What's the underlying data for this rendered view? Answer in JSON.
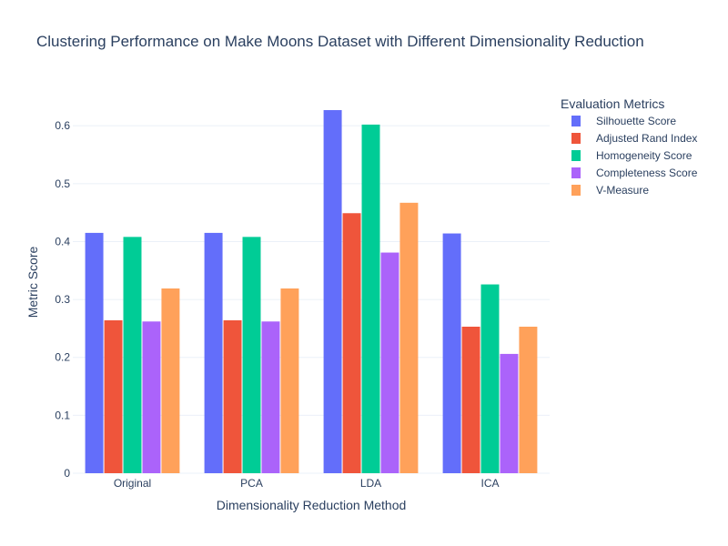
{
  "chart_data": {
    "type": "bar",
    "title": "Clustering Performance on Make Moons Dataset with Different Dimensionality Reduction",
    "xlabel": "Dimensionality Reduction Method",
    "ylabel": "Metric Score",
    "categories": [
      "Original",
      "PCA",
      "LDA",
      "ICA"
    ],
    "ylim": [
      0,
      0.66
    ],
    "yticks": [
      0,
      0.1,
      0.2,
      0.3,
      0.4,
      0.5,
      0.6
    ],
    "ytick_labels": [
      "0",
      "0.1",
      "0.2",
      "0.3",
      "0.4",
      "0.5",
      "0.6"
    ],
    "grid": true,
    "legend": {
      "title": "Evaluation Metrics",
      "placement": "right"
    },
    "series": [
      {
        "name": "Silhouette Score",
        "color": "#636efa",
        "values": [
          0.415,
          0.415,
          0.627,
          0.414
        ]
      },
      {
        "name": "Adjusted Rand Index",
        "color": "#ef553b",
        "values": [
          0.264,
          0.264,
          0.449,
          0.253
        ]
      },
      {
        "name": "Homogeneity Score",
        "color": "#00cc96",
        "values": [
          0.408,
          0.408,
          0.602,
          0.326
        ]
      },
      {
        "name": "Completeness Score",
        "color": "#ab63fa",
        "values": [
          0.262,
          0.262,
          0.381,
          0.206
        ]
      },
      {
        "name": "V-Measure",
        "color": "#ffa15a",
        "values": [
          0.319,
          0.319,
          0.467,
          0.253
        ]
      }
    ]
  }
}
